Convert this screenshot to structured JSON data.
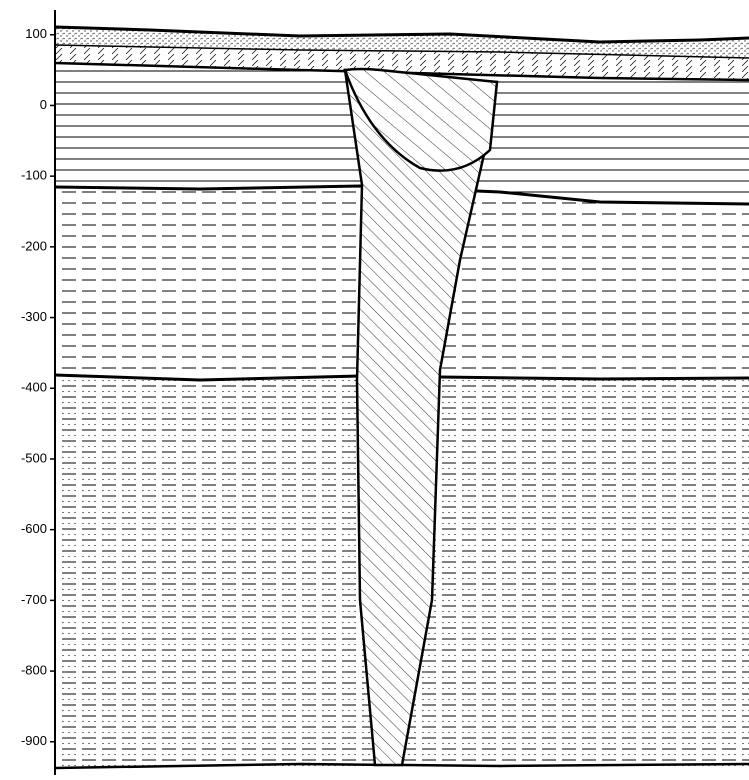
{
  "depth_axis": {
    "ticks": [
      100,
      0,
      -100,
      -200,
      -300,
      -400,
      -500,
      -600,
      -700,
      -800,
      -900
    ],
    "lim": [
      135,
      -947
    ]
  }
}
